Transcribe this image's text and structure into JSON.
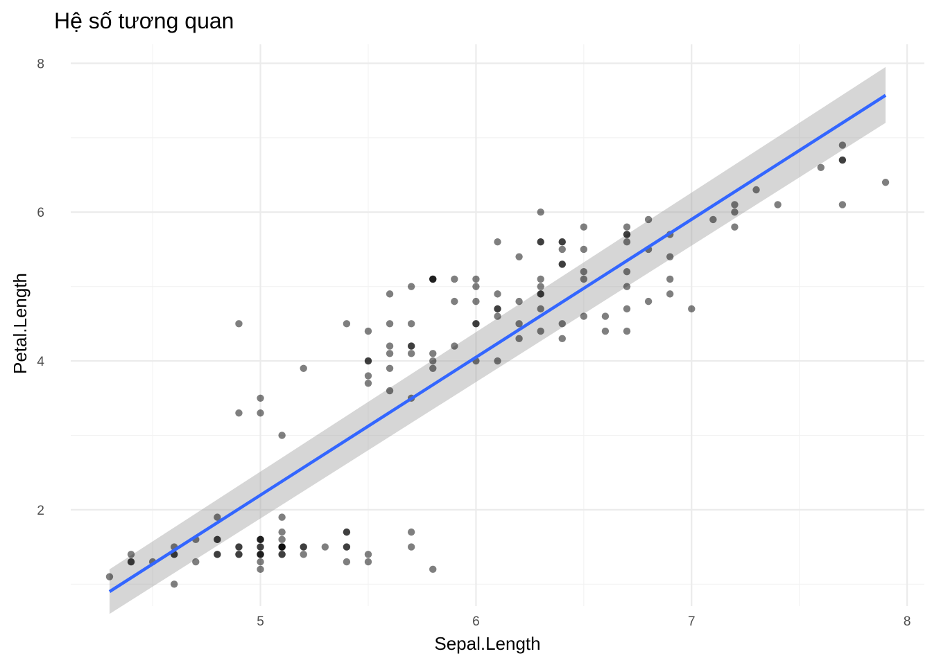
{
  "chart_data": {
    "type": "scatter",
    "title": "Hệ số tương quan",
    "xlabel": "Sepal.Length",
    "ylabel": "Petal.Length",
    "xlim": [
      4.12,
      8.08
    ],
    "ylim": [
      0.705,
      8.255
    ],
    "x_ticks": [
      5,
      6,
      7,
      8
    ],
    "y_ticks": [
      2,
      4,
      6,
      8
    ],
    "x_minor": [
      4.5,
      5.5,
      6.5,
      7.5
    ],
    "y_minor": [
      1,
      3,
      5,
      7
    ],
    "grid": true,
    "legend": "none",
    "colors": {
      "points": "#000000",
      "fit_line": "#3366ff",
      "confidence_band": "#999999"
    },
    "smooth": {
      "method": "lm",
      "x": [
        4.3,
        7.9
      ],
      "y": [
        0.9,
        7.57
      ],
      "band_lower": [
        0.6,
        7.2
      ],
      "band_upper": [
        1.2,
        7.95
      ]
    },
    "points": [
      [
        4.3,
        1.1
      ],
      [
        4.4,
        1.3
      ],
      [
        4.4,
        1.4
      ],
      [
        4.4,
        1.3
      ],
      [
        4.5,
        1.3
      ],
      [
        4.6,
        1.4
      ],
      [
        4.6,
        1.5
      ],
      [
        4.6,
        1.0
      ],
      [
        4.6,
        1.4
      ],
      [
        4.7,
        1.3
      ],
      [
        4.7,
        1.6
      ],
      [
        4.8,
        1.6
      ],
      [
        4.8,
        1.4
      ],
      [
        4.8,
        1.9
      ],
      [
        4.8,
        1.6
      ],
      [
        4.8,
        1.4
      ],
      [
        4.9,
        1.4
      ],
      [
        4.9,
        1.5
      ],
      [
        4.9,
        1.5
      ],
      [
        4.9,
        1.4
      ],
      [
        4.9,
        4.5
      ],
      [
        4.9,
        3.3
      ],
      [
        5.0,
        1.4
      ],
      [
        5.0,
        1.5
      ],
      [
        5.0,
        1.6
      ],
      [
        5.0,
        1.4
      ],
      [
        5.0,
        1.3
      ],
      [
        5.0,
        1.2
      ],
      [
        5.0,
        1.6
      ],
      [
        5.0,
        1.4
      ],
      [
        5.0,
        3.5
      ],
      [
        5.0,
        3.3
      ],
      [
        5.0,
        1.5
      ],
      [
        5.0,
        1.6
      ],
      [
        5.1,
        1.4
      ],
      [
        5.1,
        1.5
      ],
      [
        5.1,
        1.5
      ],
      [
        5.1,
        1.7
      ],
      [
        5.1,
        1.5
      ],
      [
        5.1,
        1.9
      ],
      [
        5.1,
        1.4
      ],
      [
        5.1,
        1.5
      ],
      [
        5.1,
        1.6
      ],
      [
        5.1,
        3.0
      ],
      [
        5.2,
        1.5
      ],
      [
        5.2,
        1.4
      ],
      [
        5.2,
        1.5
      ],
      [
        5.2,
        3.9
      ],
      [
        5.3,
        1.5
      ],
      [
        5.4,
        1.7
      ],
      [
        5.4,
        1.5
      ],
      [
        5.4,
        1.5
      ],
      [
        5.4,
        1.7
      ],
      [
        5.4,
        1.3
      ],
      [
        5.4,
        4.5
      ],
      [
        5.5,
        1.3
      ],
      [
        5.5,
        1.4
      ],
      [
        5.5,
        4.0
      ],
      [
        5.5,
        3.8
      ],
      [
        5.5,
        3.7
      ],
      [
        5.5,
        4.0
      ],
      [
        5.5,
        4.4
      ],
      [
        5.6,
        4.5
      ],
      [
        5.6,
        3.9
      ],
      [
        5.6,
        4.2
      ],
      [
        5.6,
        3.6
      ],
      [
        5.6,
        4.1
      ],
      [
        5.6,
        4.9
      ],
      [
        5.7,
        1.5
      ],
      [
        5.7,
        1.7
      ],
      [
        5.7,
        4.5
      ],
      [
        5.7,
        3.5
      ],
      [
        5.7,
        4.2
      ],
      [
        5.7,
        4.2
      ],
      [
        5.7,
        4.1
      ],
      [
        5.7,
        5.0
      ],
      [
        5.8,
        1.2
      ],
      [
        5.8,
        4.1
      ],
      [
        5.8,
        3.9
      ],
      [
        5.8,
        4.0
      ],
      [
        5.8,
        5.1
      ],
      [
        5.8,
        5.1
      ],
      [
        5.8,
        5.1
      ],
      [
        5.9,
        4.8
      ],
      [
        5.9,
        4.2
      ],
      [
        5.9,
        5.1
      ],
      [
        6.0,
        4.5
      ],
      [
        6.0,
        4.0
      ],
      [
        6.0,
        5.0
      ],
      [
        6.0,
        4.8
      ],
      [
        6.0,
        5.1
      ],
      [
        6.0,
        4.5
      ],
      [
        6.1,
        4.7
      ],
      [
        6.1,
        4.0
      ],
      [
        6.1,
        4.7
      ],
      [
        6.1,
        4.6
      ],
      [
        6.1,
        5.6
      ],
      [
        6.1,
        4.9
      ],
      [
        6.2,
        4.3
      ],
      [
        6.2,
        4.5
      ],
      [
        6.2,
        5.4
      ],
      [
        6.2,
        4.8
      ],
      [
        6.3,
        4.7
      ],
      [
        6.3,
        4.9
      ],
      [
        6.3,
        4.4
      ],
      [
        6.3,
        6.0
      ],
      [
        6.3,
        5.1
      ],
      [
        6.3,
        5.6
      ],
      [
        6.3,
        5.0
      ],
      [
        6.3,
        4.9
      ],
      [
        6.3,
        5.6
      ],
      [
        6.4,
        4.5
      ],
      [
        6.4,
        4.3
      ],
      [
        6.4,
        5.3
      ],
      [
        6.4,
        5.5
      ],
      [
        6.4,
        5.3
      ],
      [
        6.4,
        5.6
      ],
      [
        6.4,
        5.6
      ],
      [
        6.5,
        4.6
      ],
      [
        6.5,
        5.1
      ],
      [
        6.5,
        5.8
      ],
      [
        6.5,
        5.5
      ],
      [
        6.5,
        5.2
      ],
      [
        6.6,
        4.6
      ],
      [
        6.6,
        4.4
      ],
      [
        6.7,
        4.4
      ],
      [
        6.7,
        5.0
      ],
      [
        6.7,
        4.7
      ],
      [
        6.7,
        5.8
      ],
      [
        6.7,
        5.7
      ],
      [
        6.7,
        5.7
      ],
      [
        6.7,
        5.6
      ],
      [
        6.7,
        5.2
      ],
      [
        6.8,
        4.8
      ],
      [
        6.8,
        5.5
      ],
      [
        6.8,
        5.9
      ],
      [
        6.9,
        4.9
      ],
      [
        6.9,
        5.1
      ],
      [
        6.9,
        5.7
      ],
      [
        6.9,
        5.4
      ],
      [
        7.0,
        4.7
      ],
      [
        7.1,
        5.9
      ],
      [
        7.2,
        6.1
      ],
      [
        7.2,
        5.8
      ],
      [
        7.2,
        6.0
      ],
      [
        7.3,
        6.3
      ],
      [
        7.4,
        6.1
      ],
      [
        7.6,
        6.6
      ],
      [
        7.7,
        6.7
      ],
      [
        7.7,
        6.9
      ],
      [
        7.7,
        6.7
      ],
      [
        7.7,
        6.1
      ],
      [
        7.9,
        6.4
      ]
    ]
  }
}
